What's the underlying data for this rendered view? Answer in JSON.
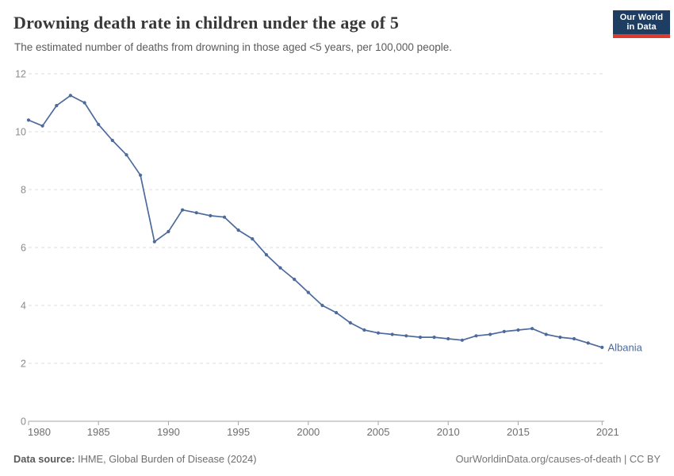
{
  "header": {
    "title": "Drowning death rate in children under the age of 5",
    "subtitle": "The estimated number of deaths from drowning in those aged <5 years, per 100,000 people.",
    "logo": {
      "line1": "Our World",
      "line2": "in Data",
      "bg_color": "#1d3d63",
      "accent_color": "#dc3a2f"
    }
  },
  "chart_data": {
    "type": "line",
    "title": "Drowning death rate in children under the age of 5",
    "subtitle": "The estimated number of deaths from drowning in those aged <5 years, per 100,000 people.",
    "xlabel": "",
    "ylabel": "",
    "x": [
      1980,
      1981,
      1982,
      1983,
      1984,
      1985,
      1986,
      1987,
      1988,
      1989,
      1990,
      1991,
      1992,
      1993,
      1994,
      1995,
      1996,
      1997,
      1998,
      1999,
      2000,
      2001,
      2002,
      2003,
      2004,
      2005,
      2006,
      2007,
      2008,
      2009,
      2010,
      2011,
      2012,
      2013,
      2014,
      2015,
      2016,
      2017,
      2018,
      2019,
      2020,
      2021
    ],
    "series": [
      {
        "name": "Albania",
        "color": "#4C6A9C",
        "values": [
          10.4,
          10.2,
          10.9,
          11.25,
          11.0,
          10.25,
          9.7,
          9.2,
          8.5,
          6.2,
          6.55,
          7.3,
          7.2,
          7.1,
          7.05,
          6.6,
          6.3,
          5.75,
          5.3,
          4.9,
          4.45,
          4.0,
          3.75,
          3.4,
          3.15,
          3.05,
          3.0,
          2.95,
          2.9,
          2.9,
          2.85,
          2.8,
          2.95,
          3.0,
          3.1,
          3.15,
          3.2,
          3.0,
          2.9,
          2.85,
          2.7,
          2.55
        ]
      }
    ],
    "ylim": [
      0,
      12
    ],
    "y_ticks": [
      0,
      2,
      4,
      6,
      8,
      10,
      12
    ],
    "x_ticks": [
      1980,
      1985,
      1990,
      1995,
      2000,
      2005,
      2010,
      2015,
      2021
    ],
    "grid": "horizontal-dashed",
    "legend_position": "end-of-line-label",
    "markers": "dot",
    "colors": {
      "gridline": "#dedede",
      "axis": "#a5a5a5",
      "x_tick_label": "#6e6e6e",
      "y_tick_label": "#8a8a8a"
    }
  },
  "footer": {
    "source_label": "Data source:",
    "source_text": " IHME, Global Burden of Disease (2024)",
    "credit": "OurWorldinData.org/causes-of-death | CC BY"
  }
}
